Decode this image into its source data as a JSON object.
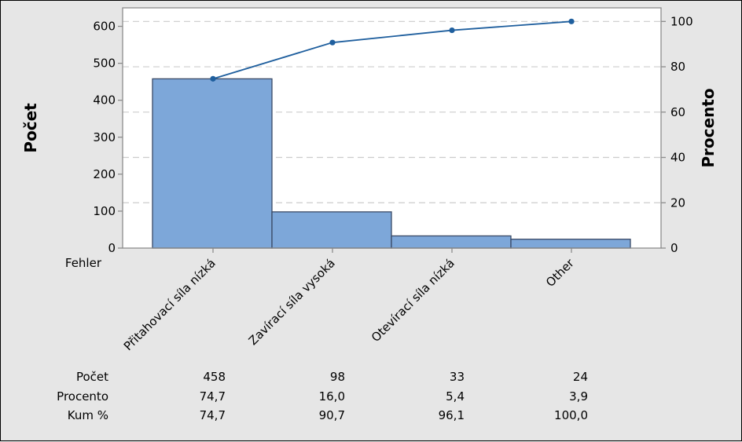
{
  "chart_data": {
    "type": "bar",
    "subtype": "pareto",
    "categories": [
      "Přitahovací síla nízká",
      "Zavírací síla vysoká",
      "Otevírací síla nízká",
      "Other"
    ],
    "category_axis_label": "Fehler",
    "series": [
      {
        "values": [
          458,
          98,
          33,
          24
        ],
        "type": "bar",
        "axis": "left",
        "color": "#7da7d9"
      },
      {
        "values": [
          74.7,
          90.7,
          96.1,
          100.0
        ],
        "type": "line",
        "axis": "right",
        "color": "#1f5f9e"
      }
    ],
    "ylabel": "Počet",
    "ylabel_right": "Procento",
    "ylim": [
      0,
      650
    ],
    "ylim_right": [
      0,
      106
    ],
    "yticks": [
      0,
      100,
      200,
      300,
      400,
      500,
      600
    ],
    "yticks_right": [
      0,
      20,
      40,
      60,
      80,
      100
    ],
    "grid": "horizontal dashed",
    "table": {
      "row_labels": [
        "Počet",
        "Procento",
        "Kum %"
      ],
      "rows": [
        [
          "458",
          "98",
          "33",
          "24"
        ],
        [
          "74,7",
          "16,0",
          "5,4",
          "3,9"
        ],
        [
          "74,7",
          "90,7",
          "96,1",
          "100,0"
        ]
      ]
    }
  }
}
